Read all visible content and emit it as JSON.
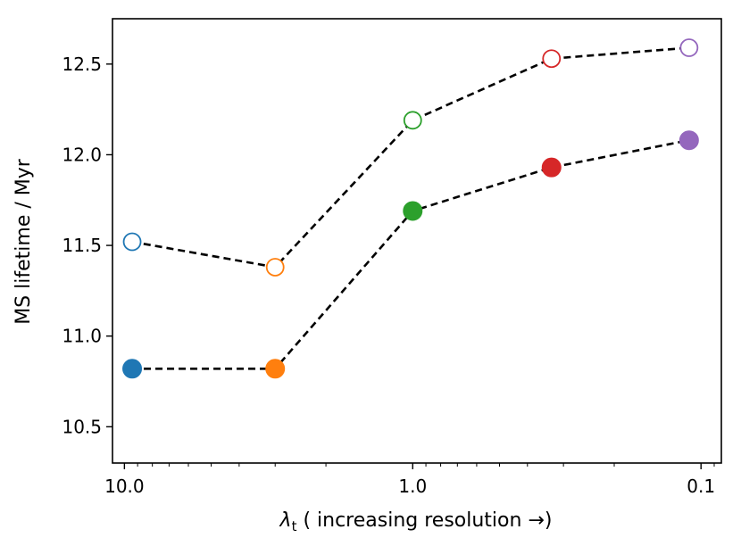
{
  "chart_data": {
    "type": "line",
    "title": "",
    "xlabel_symbol": "λ",
    "xlabel_subscript": "t",
    "xlabel_rest": " ( increasing resolution →)",
    "ylabel": "MS lifetime / Myr",
    "x_scale": "log",
    "x_reversed": true,
    "xlim": [
      11.0,
      0.085
    ],
    "ylim": [
      10.3,
      12.75
    ],
    "x_ticks": [
      {
        "value": 10.0,
        "label": "10.0"
      },
      {
        "value": 1.0,
        "label": "1.0"
      },
      {
        "value": 0.1,
        "label": "0.1"
      }
    ],
    "y_ticks": [
      {
        "value": 10.5,
        "label": "10.5"
      },
      {
        "value": 11.0,
        "label": "11.0"
      },
      {
        "value": 11.5,
        "label": "11.5"
      },
      {
        "value": 12.0,
        "label": "12.0"
      },
      {
        "value": 12.5,
        "label": "12.5"
      }
    ],
    "x": [
      9.4,
      3.0,
      1.0,
      0.33,
      0.11
    ],
    "point_colors": [
      "#1f77b4",
      "#ff7f0e",
      "#2ca02c",
      "#d62728",
      "#9467bd"
    ],
    "line_color": "#000000",
    "series": [
      {
        "name": "open",
        "marker": "open-circle",
        "values": [
          11.52,
          11.38,
          12.19,
          12.53,
          12.59
        ]
      },
      {
        "name": "filled",
        "marker": "filled-circle",
        "values": [
          10.82,
          10.82,
          11.69,
          11.93,
          12.08
        ]
      }
    ]
  }
}
